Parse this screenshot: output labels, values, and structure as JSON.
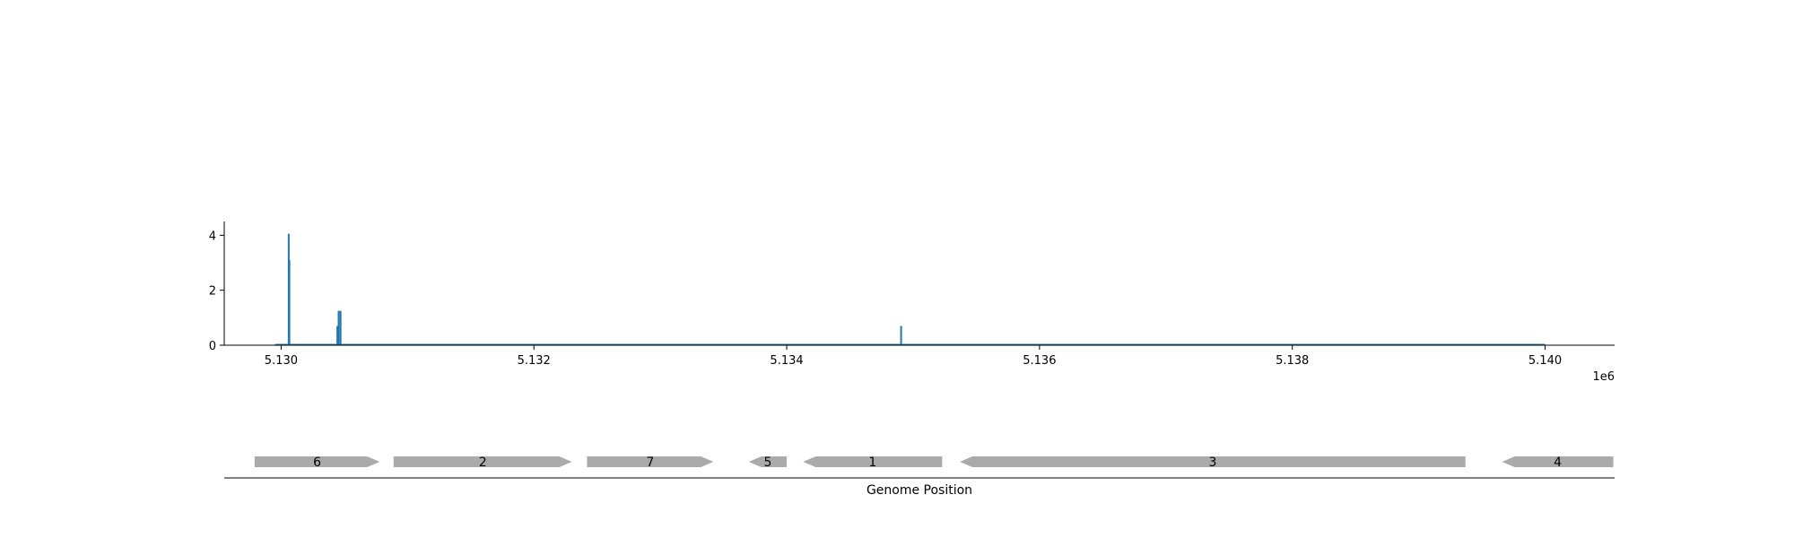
{
  "chart_data": [
    {
      "type": "line",
      "title": "",
      "xlabel": "",
      "ylabel": "",
      "x_offset_label": "1e6",
      "xlim": [
        5.12955,
        5.14055
      ],
      "ylim": [
        0,
        4.5
      ],
      "x_ticks": [
        5.13,
        5.132,
        5.134,
        5.136,
        5.138,
        5.14
      ],
      "x_tick_labels": [
        "5.130",
        "5.132",
        "5.134",
        "5.136",
        "5.138",
        "5.140"
      ],
      "y_ticks": [
        0,
        2,
        4
      ],
      "y_tick_labels": [
        "0",
        "2",
        "4"
      ],
      "grid": false,
      "color": "#1f77b4",
      "baseline": {
        "start": 5.12995,
        "end": 5.14
      },
      "series": [
        {
          "name": "",
          "peaks": [
            {
              "x": 5.13006,
              "y": 4.05
            },
            {
              "x": 5.130065,
              "y": 3.1
            },
            {
              "x": 5.130445,
              "y": 0.7
            },
            {
              "x": 5.130455,
              "y": 1.25
            },
            {
              "x": 5.13047,
              "y": 1.25
            },
            {
              "x": 5.134905,
              "y": 0.7
            }
          ]
        }
      ]
    },
    {
      "type": "gene-track",
      "xlabel": "Genome Position",
      "xlim": [
        5.12955,
        5.14055
      ],
      "color": "#aaaaaa",
      "genes": [
        {
          "label": "6",
          "start": 5.12979,
          "end": 5.13078,
          "strand": "+"
        },
        {
          "label": "2",
          "start": 5.13089,
          "end": 5.1323,
          "strand": "+"
        },
        {
          "label": "7",
          "start": 5.13242,
          "end": 5.13342,
          "strand": "+"
        },
        {
          "label": "5",
          "start": 5.1337,
          "end": 5.134,
          "strand": "-"
        },
        {
          "label": "1",
          "start": 5.13413,
          "end": 5.13523,
          "strand": "-"
        },
        {
          "label": "3",
          "start": 5.13537,
          "end": 5.13937,
          "strand": "-"
        },
        {
          "label": "4",
          "start": 5.13966,
          "end": 5.14054,
          "strand": "-"
        }
      ]
    }
  ]
}
